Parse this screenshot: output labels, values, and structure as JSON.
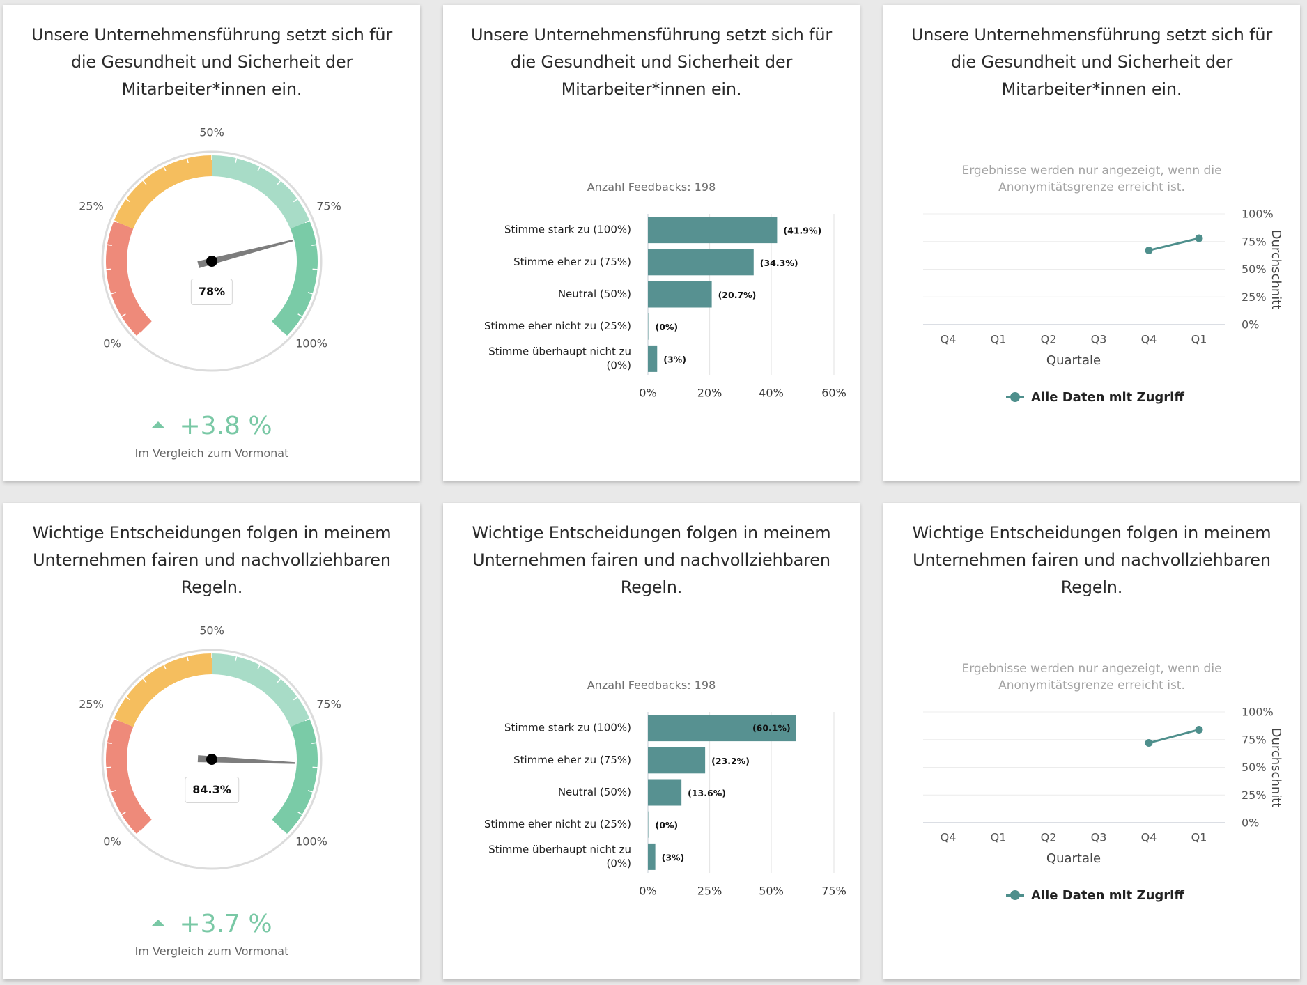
{
  "colors": {
    "gauge_red": "#ee8a7a",
    "gauge_orange": "#f5be5e",
    "gauge_lightgreen": "#a8dcc7",
    "gauge_green": "#7acba7",
    "bar": "#579191",
    "line": "#4e8f8c",
    "delta_positive": "#79c8a5"
  },
  "rows": [
    {
      "question": "Unsere Unternehmensführung setzt sich für die Gesundheit und Sicherheit der Mitarbeiter*innen ein.",
      "gauge": {
        "value_label": "78%",
        "delta_label": "+3.8 %",
        "delta_direction": "up",
        "delta_subtitle": "Im Vergleich zum Vormonat"
      },
      "bars": {
        "feedback_label": "Anzahl Feedbacks: 198"
      },
      "trend": {
        "note": "Ergebnisse werden nur angezeigt, wenn die Anonymitätsgrenze erreicht ist.",
        "legend_label": "Alle Daten mit Zugriff"
      }
    },
    {
      "question": "Wichtige Entscheidungen folgen in meinem Unternehmen fairen und nachvollziehbaren Regeln.",
      "gauge": {
        "value_label": "84.3%",
        "delta_label": "+3.7 %",
        "delta_direction": "up",
        "delta_subtitle": "Im Vergleich zum Vormonat"
      },
      "bars": {
        "feedback_label": "Anzahl Feedbacks: 198"
      },
      "trend": {
        "note": "Ergebnisse werden nur angezeigt, wenn die Anonymitätsgrenze erreicht ist.",
        "legend_label": "Alle Daten mit Zugriff"
      }
    }
  ],
  "chart_data": [
    {
      "type": "gauge",
      "title": "Unsere Unternehmensführung setzt sich für die Gesundheit und Sicherheit der Mitarbeiter*innen ein.",
      "value": 78,
      "range": [
        0,
        100
      ],
      "tick_labels": [
        "0%",
        "25%",
        "50%",
        "75%",
        "100%"
      ],
      "bands": [
        {
          "from": 0,
          "to": 25,
          "color": "#ee8a7a"
        },
        {
          "from": 25,
          "to": 50,
          "color": "#f5be5e"
        },
        {
          "from": 50,
          "to": 75,
          "color": "#a8dcc7"
        },
        {
          "from": 75,
          "to": 100,
          "color": "#7acba7"
        }
      ],
      "delta": 3.8
    },
    {
      "type": "bar",
      "orientation": "horizontal",
      "title": "Anzahl Feedbacks: 198",
      "categories": [
        "Stimme stark zu (100%)",
        "Stimme eher zu (75%)",
        "Neutral (50%)",
        "Stimme eher nicht zu (25%)",
        "Stimme überhaupt nicht zu (0%)"
      ],
      "values": [
        41.9,
        34.3,
        20.7,
        0,
        3
      ],
      "value_labels": [
        "(41.9%)",
        "(34.3%)",
        "(20.7%)",
        "(0%)",
        "(3%)"
      ],
      "x_ticks": [
        "0%",
        "20%",
        "40%",
        "60%"
      ],
      "tick_step": 20,
      "xlim": [
        0,
        60
      ],
      "grid": true
    },
    {
      "type": "line",
      "title": "Ergebnisse werden nur angezeigt, wenn die Anonymitätsgrenze erreicht ist.",
      "categories": [
        "Q4",
        "Q1",
        "Q2",
        "Q3",
        "Q4",
        "Q1"
      ],
      "xlabel": "Quartale",
      "ylabel": "Durchschnitt",
      "y_ticks": [
        "0%",
        "25%",
        "50%",
        "75%",
        "100%"
      ],
      "ylim": [
        0,
        100
      ],
      "grid": true,
      "legend": "bottom",
      "series": [
        {
          "name": "Alle Daten mit Zugriff",
          "values": [
            null,
            null,
            null,
            null,
            67,
            78
          ]
        }
      ]
    },
    {
      "type": "gauge",
      "title": "Wichtige Entscheidungen folgen in meinem Unternehmen fairen und nachvollziehbaren Regeln.",
      "value": 84.3,
      "range": [
        0,
        100
      ],
      "tick_labels": [
        "0%",
        "25%",
        "50%",
        "75%",
        "100%"
      ],
      "bands": [
        {
          "from": 0,
          "to": 25,
          "color": "#ee8a7a"
        },
        {
          "from": 25,
          "to": 50,
          "color": "#f5be5e"
        },
        {
          "from": 50,
          "to": 75,
          "color": "#a8dcc7"
        },
        {
          "from": 75,
          "to": 100,
          "color": "#7acba7"
        }
      ],
      "delta": 3.7
    },
    {
      "type": "bar",
      "orientation": "horizontal",
      "title": "Anzahl Feedbacks: 198",
      "categories": [
        "Stimme stark zu (100%)",
        "Stimme eher zu (75%)",
        "Neutral (50%)",
        "Stimme eher nicht zu (25%)",
        "Stimme überhaupt nicht zu (0%)"
      ],
      "values": [
        60.1,
        23.2,
        13.6,
        0,
        3
      ],
      "value_labels": [
        "(60.1%)",
        "(23.2%)",
        "(13.6%)",
        "(0%)",
        "(3%)"
      ],
      "x_ticks": [
        "0%",
        "25%",
        "50%",
        "75%"
      ],
      "tick_step": 25,
      "xlim": [
        0,
        75
      ],
      "grid": true,
      "inside_label_first": true
    },
    {
      "type": "line",
      "title": "Ergebnisse werden nur angezeigt, wenn die Anonymitätsgrenze erreicht ist.",
      "categories": [
        "Q4",
        "Q1",
        "Q2",
        "Q3",
        "Q4",
        "Q1"
      ],
      "xlabel": "Quartale",
      "ylabel": "Durchschnitt",
      "y_ticks": [
        "0%",
        "25%",
        "50%",
        "75%",
        "100%"
      ],
      "ylim": [
        0,
        100
      ],
      "grid": true,
      "legend": "bottom",
      "series": [
        {
          "name": "Alle Daten mit Zugriff",
          "values": [
            null,
            null,
            null,
            null,
            72,
            84
          ]
        }
      ]
    }
  ]
}
